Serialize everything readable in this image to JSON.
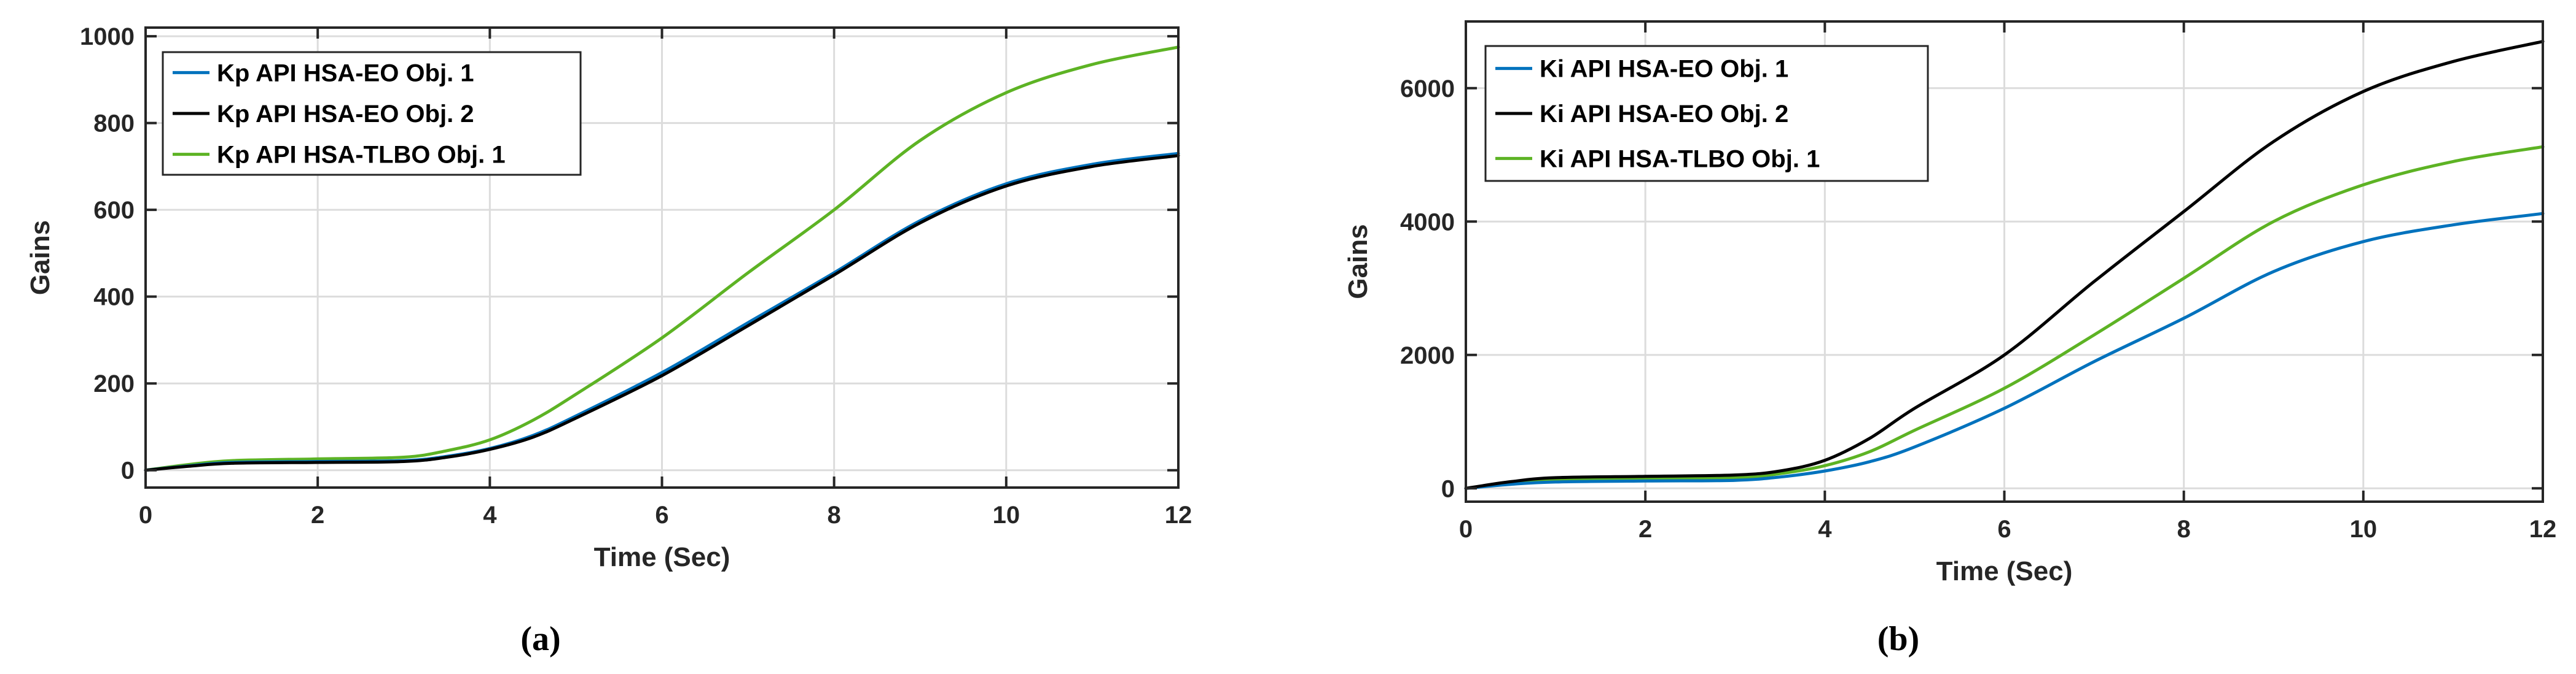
{
  "chart_data": [
    {
      "type": "line",
      "caption": "(a)",
      "xlabel": "Time (Sec)",
      "ylabel": "Gains",
      "xlim": [
        0,
        12
      ],
      "ylim": [
        -40,
        1020
      ],
      "xticks": [
        0,
        2,
        4,
        6,
        8,
        10,
        12
      ],
      "yticks": [
        0,
        200,
        400,
        600,
        800,
        1000
      ],
      "grid": true,
      "legend_position": "top-left",
      "series": [
        {
          "name": "Kp API HSA-EO Obj. 1",
          "color": "#0072BD",
          "x": [
            0,
            0.5,
            1,
            2,
            3,
            3.5,
            4,
            4.5,
            5,
            6,
            7,
            8,
            9,
            10,
            11,
            12
          ],
          "y": [
            0,
            10,
            18,
            20,
            22,
            32,
            50,
            80,
            125,
            225,
            340,
            455,
            575,
            660,
            705,
            730
          ]
        },
        {
          "name": "Kp API HSA-EO Obj. 2",
          "color": "#000000",
          "x": [
            0,
            0.5,
            1,
            2,
            3,
            3.5,
            4,
            4.5,
            5,
            6,
            7,
            8,
            9,
            10,
            11,
            12
          ],
          "y": [
            0,
            9,
            16,
            18,
            20,
            30,
            48,
            76,
            120,
            218,
            333,
            450,
            570,
            655,
            700,
            725
          ]
        },
        {
          "name": "Kp API HSA-TLBO Obj. 1",
          "color": "#5DB324",
          "x": [
            0,
            0.5,
            1,
            2,
            3,
            3.5,
            4,
            4.5,
            5,
            6,
            7,
            8,
            9,
            10,
            11,
            12
          ],
          "y": [
            0,
            13,
            22,
            26,
            30,
            45,
            70,
            115,
            175,
            305,
            455,
            600,
            760,
            870,
            935,
            975
          ]
        }
      ]
    },
    {
      "type": "line",
      "caption": "(b)",
      "xlabel": "Time (Sec)",
      "ylabel": "Gains",
      "xlim": [
        0,
        12
      ],
      "ylim": [
        -200,
        7000
      ],
      "xticks": [
        0,
        2,
        4,
        6,
        8,
        10,
        12
      ],
      "yticks": [
        0,
        2000,
        4000,
        6000
      ],
      "grid": true,
      "legend_position": "top-left",
      "series": [
        {
          "name": "Ki API HSA-EO Obj. 1",
          "color": "#0072BD",
          "x": [
            0,
            0.5,
            1,
            2,
            3,
            3.5,
            4,
            4.5,
            5,
            6,
            7,
            8,
            9,
            10,
            11,
            12
          ],
          "y": [
            0,
            60,
            95,
            110,
            120,
            170,
            260,
            400,
            620,
            1200,
            1900,
            2550,
            3250,
            3700,
            3950,
            4120
          ]
        },
        {
          "name": "Ki API HSA-EO Obj. 2",
          "color": "#000000",
          "x": [
            0,
            0.5,
            1,
            2,
            3,
            3.5,
            4,
            4.5,
            5,
            6,
            7,
            8,
            9,
            10,
            11,
            12
          ],
          "y": [
            0,
            100,
            160,
            180,
            200,
            260,
            420,
            750,
            1200,
            2000,
            3100,
            4150,
            5200,
            5950,
            6400,
            6700
          ]
        },
        {
          "name": "Ki API HSA-TLBO Obj. 1",
          "color": "#5DB324",
          "x": [
            0,
            0.5,
            1,
            2,
            3,
            3.5,
            4,
            4.5,
            5,
            6,
            7,
            8,
            9,
            10,
            11,
            12
          ],
          "y": [
            0,
            80,
            130,
            150,
            160,
            220,
            340,
            550,
            870,
            1500,
            2300,
            3150,
            4000,
            4550,
            4900,
            5120
          ]
        }
      ]
    }
  ]
}
